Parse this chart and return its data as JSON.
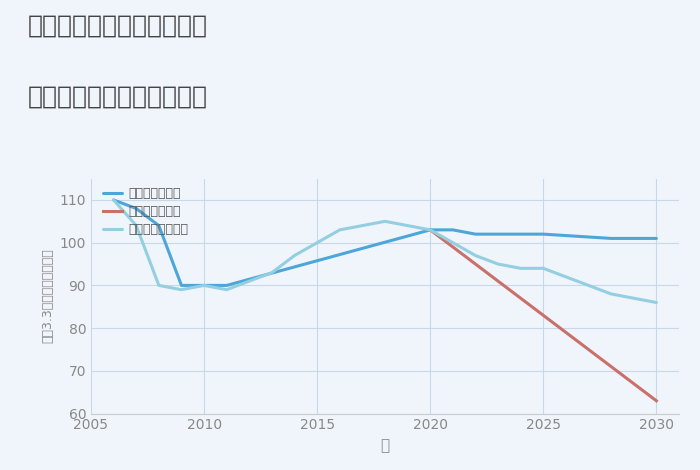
{
  "title_line1": "奈良県吉野郡大淀町芦原の",
  "title_line2": "中古マンションの価格推移",
  "xlabel": "年",
  "ylabel": "平（3.3㎡）単価（万円）",
  "ylim": [
    60,
    115
  ],
  "xlim": [
    2005,
    2031
  ],
  "yticks": [
    60,
    70,
    80,
    90,
    100,
    110
  ],
  "xticks": [
    2005,
    2010,
    2015,
    2020,
    2025,
    2030
  ],
  "good_scenario": {
    "label": "グッドシナリオ",
    "color": "#4da6d9",
    "x": [
      2006,
      2007,
      2008,
      2009,
      2010,
      2011,
      2020,
      2021,
      2022,
      2023,
      2024,
      2025,
      2028,
      2030
    ],
    "y": [
      110,
      108,
      104,
      90,
      90,
      90,
      103,
      103,
      102,
      102,
      102,
      102,
      101,
      101
    ]
  },
  "bad_scenario": {
    "label": "バッドシナリオ",
    "color": "#c9706a",
    "x": [
      2020,
      2030
    ],
    "y": [
      103,
      63
    ]
  },
  "normal_scenario": {
    "label": "ノーマルシナリオ",
    "color": "#93cfe0",
    "x": [
      2006,
      2007,
      2008,
      2009,
      2010,
      2011,
      2012,
      2013,
      2014,
      2015,
      2016,
      2017,
      2018,
      2019,
      2020,
      2021,
      2022,
      2023,
      2024,
      2025,
      2027,
      2028,
      2030
    ],
    "y": [
      110,
      104,
      90,
      89,
      90,
      89,
      91,
      93,
      97,
      100,
      103,
      104,
      105,
      104,
      103,
      100,
      97,
      95,
      94,
      94,
      90,
      88,
      86
    ]
  },
  "background_color": "#f0f5fb",
  "grid_color": "#c8d8e8",
  "title_color": "#444444",
  "axis_color": "#888888",
  "legend_color": "#555555"
}
